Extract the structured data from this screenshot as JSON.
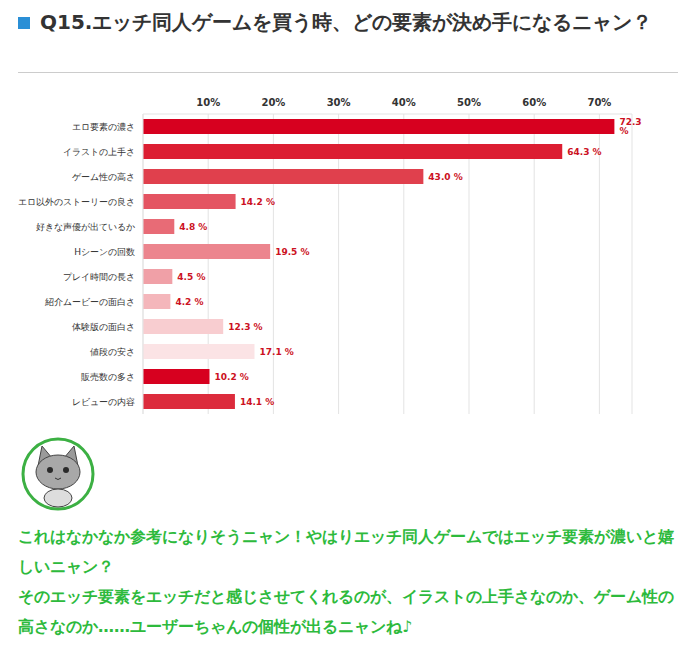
{
  "heading": "Q15.エッチ同人ゲームを買う時、どの要素が決め手になるニャン？",
  "chart_data": {
    "type": "bar",
    "orientation": "horizontal",
    "categories": [
      "エロ要素の濃さ",
      "イラストの上手さ",
      "ゲーム性の高さ",
      "エロ以外のストーリーの良さ",
      "好きな声優が出ているか",
      "Hシーンの回数",
      "プレイ時間の長さ",
      "紹介ムービーの面白さ",
      "体験版の面白さ",
      "値段の安さ",
      "販売数の多さ",
      "レビューの内容"
    ],
    "values": [
      72.3,
      64.3,
      43.0,
      14.2,
      4.8,
      19.5,
      4.5,
      4.2,
      12.3,
      17.1,
      10.2,
      14.1
    ],
    "value_labels": [
      "72.3 %",
      "64.3 %",
      "43.0 %",
      "14.2 %",
      "4.8 %",
      "19.5 %",
      "4.5 %",
      "4.2 %",
      "12.3 %",
      "17.1 %",
      "10.2 %",
      "14.1 %"
    ],
    "colors": [
      "#d7001f",
      "#dc1e32",
      "#e0404d",
      "#e45462",
      "#e86b76",
      "#ec858e",
      "#f0a0a7",
      "#f4b6bb",
      "#f8cdd0",
      "#fbe3e5",
      "#d7001f",
      "#dc2b3c"
    ],
    "xlim": [
      0,
      75
    ],
    "xticks": [
      {
        "value": 10,
        "label": "10%"
      },
      {
        "value": 20,
        "label": "20%"
      },
      {
        "value": 30,
        "label": "30%"
      },
      {
        "value": 40,
        "label": "40%"
      },
      {
        "value": 50,
        "label": "50%"
      },
      {
        "value": 60,
        "label": "60%"
      },
      {
        "value": 70,
        "label": "70%"
      }
    ],
    "grid": true,
    "data_labels": true
  },
  "comment": [
    "これはなかなか参考になりそうニャン！やはりエッチ同人ゲームではエッチ要素が濃いと嬉しいニャン？",
    "そのエッチ要素をエッチだと感じさせてくれるのが、イラストの上手さなのか、ゲーム性の高さなのか……ユーザーちゃんの個性が出るニャンね♪"
  ]
}
